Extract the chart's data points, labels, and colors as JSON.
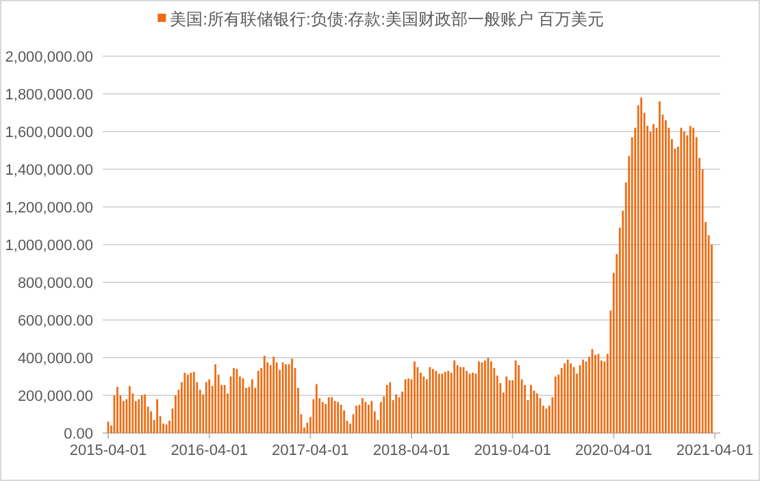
{
  "chart_data": {
    "type": "bar",
    "categories": [
      "2015-04-01",
      null,
      null,
      null,
      null,
      null,
      null,
      null,
      null,
      null,
      null,
      null,
      null,
      null,
      null,
      null,
      null,
      null,
      null,
      null,
      null,
      null,
      null,
      null,
      null,
      null,
      null,
      null,
      null,
      null,
      null,
      null,
      null,
      "2016-04-01",
      null,
      null,
      null,
      null,
      null,
      null,
      null,
      null,
      null,
      null,
      null,
      null,
      null,
      null,
      null,
      null,
      null,
      null,
      null,
      null,
      null,
      null,
      null,
      null,
      null,
      null,
      null,
      null,
      null,
      null,
      null,
      null,
      "2017-04-01",
      null,
      null,
      null,
      null,
      null,
      null,
      null,
      null,
      null,
      null,
      null,
      null,
      null,
      null,
      null,
      null,
      null,
      null,
      null,
      null,
      null,
      null,
      null,
      null,
      null,
      null,
      null,
      null,
      null,
      null,
      null,
      null,
      "2018-04-01",
      null,
      null,
      null,
      null,
      null,
      null,
      null,
      null,
      null,
      null,
      null,
      null,
      null,
      null,
      null,
      null,
      null,
      null,
      null,
      null,
      null,
      null,
      null,
      null,
      null,
      null,
      null,
      null,
      null,
      null,
      null,
      null,
      "2019-04-01",
      null,
      null,
      null,
      null,
      null,
      null,
      null,
      null,
      null,
      null,
      null,
      null,
      null,
      null,
      null,
      null,
      null,
      null,
      null,
      null,
      null,
      null,
      null,
      null,
      null,
      null,
      null,
      null,
      null,
      null,
      null,
      null,
      "2020-04-01",
      null,
      null,
      null,
      null,
      null,
      null,
      null,
      null,
      null,
      null,
      null,
      null,
      null,
      null,
      null,
      null,
      null,
      null,
      null,
      null,
      null,
      null,
      null,
      null,
      null,
      null,
      null,
      null,
      null,
      null,
      null,
      null,
      "2021-04-01"
    ],
    "series": [
      {
        "name": "美国:所有联储银行:负债:存款:美国财政部一般账户 百万美元",
        "color": "#ed6c12",
        "values": [
          60000,
          40000,
          200000,
          245000,
          200000,
          170000,
          180000,
          250000,
          210000,
          170000,
          180000,
          200000,
          205000,
          140000,
          115000,
          70000,
          180000,
          90000,
          50000,
          45000,
          65000,
          130000,
          200000,
          230000,
          270000,
          320000,
          310000,
          320000,
          325000,
          270000,
          230000,
          205000,
          270000,
          285000,
          250000,
          365000,
          310000,
          255000,
          255000,
          210000,
          300000,
          345000,
          340000,
          300000,
          290000,
          240000,
          245000,
          285000,
          240000,
          330000,
          345000,
          410000,
          375000,
          360000,
          405000,
          375000,
          335000,
          375000,
          365000,
          365000,
          395000,
          345000,
          240000,
          100000,
          30000,
          55000,
          85000,
          180000,
          260000,
          185000,
          165000,
          155000,
          190000,
          190000,
          170000,
          165000,
          150000,
          120000,
          65000,
          50000,
          100000,
          145000,
          150000,
          185000,
          165000,
          150000,
          170000,
          115000,
          70000,
          165000,
          195000,
          255000,
          270000,
          175000,
          205000,
          190000,
          220000,
          285000,
          290000,
          285000,
          380000,
          350000,
          320000,
          300000,
          285000,
          350000,
          340000,
          330000,
          315000,
          315000,
          325000,
          330000,
          320000,
          385000,
          360000,
          350000,
          350000,
          330000,
          315000,
          320000,
          315000,
          380000,
          375000,
          385000,
          400000,
          380000,
          345000,
          305000,
          265000,
          215000,
          300000,
          280000,
          280000,
          385000,
          360000,
          285000,
          255000,
          175000,
          255000,
          225000,
          210000,
          185000,
          145000,
          130000,
          145000,
          190000,
          300000,
          310000,
          345000,
          370000,
          390000,
          370000,
          350000,
          315000,
          360000,
          390000,
          380000,
          405000,
          445000,
          415000,
          420000,
          385000,
          380000,
          420000,
          650000,
          850000,
          950000,
          1090000,
          1180000,
          1330000,
          1470000,
          1570000,
          1620000,
          1740000,
          1780000,
          1700000,
          1630000,
          1600000,
          1640000,
          1620000,
          1760000,
          1690000,
          1660000,
          1620000,
          1560000,
          1510000,
          1520000,
          1620000,
          1600000,
          1580000,
          1630000,
          1620000,
          1570000,
          1460000,
          1400000,
          1120000,
          1050000,
          1000000,
          null
        ]
      }
    ],
    "ylim": [
      0,
      2000000
    ],
    "yticks": [
      {
        "value": 0,
        "label": "0.00"
      },
      {
        "value": 200000,
        "label": "200,000.00"
      },
      {
        "value": 400000,
        "label": "400,000.00"
      },
      {
        "value": 600000,
        "label": "600,000.00"
      },
      {
        "value": 800000,
        "label": "800,000.00"
      },
      {
        "value": 1000000,
        "label": "1,000,000.00"
      },
      {
        "value": 1200000,
        "label": "1,200,000.00"
      },
      {
        "value": 1400000,
        "label": "1,400,000.00"
      },
      {
        "value": 1600000,
        "label": "1,600,000.00"
      },
      {
        "value": 1800000,
        "label": "1,800,000.00"
      },
      {
        "value": 2000000,
        "label": "2,000,000.00"
      }
    ],
    "grid": "y",
    "legend": "top"
  }
}
